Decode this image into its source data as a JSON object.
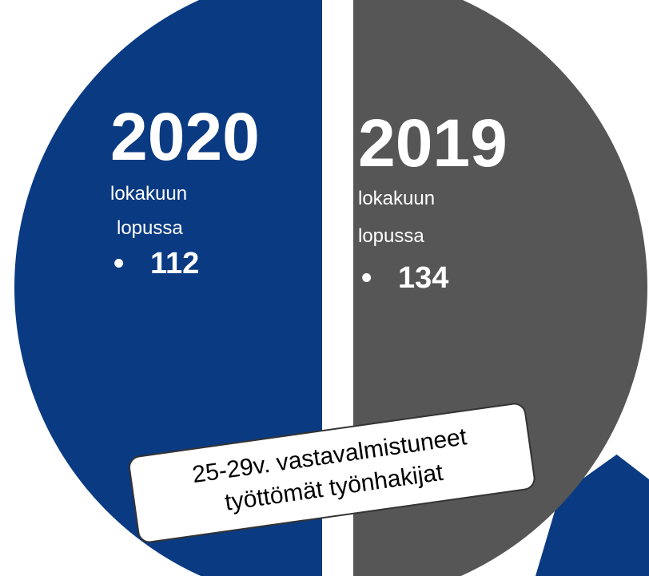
{
  "panels": [
    {
      "year": "2020",
      "lines": [
        "lokakuun",
        "lopussa"
      ],
      "value": 112
    },
    {
      "year": "2019",
      "lines": [
        "lokakuun",
        "lopussa"
      ],
      "value": 134
    }
  ],
  "caption": [
    "25-29v. vastavalmistuneet",
    "työttömät työnhakijat"
  ]
}
